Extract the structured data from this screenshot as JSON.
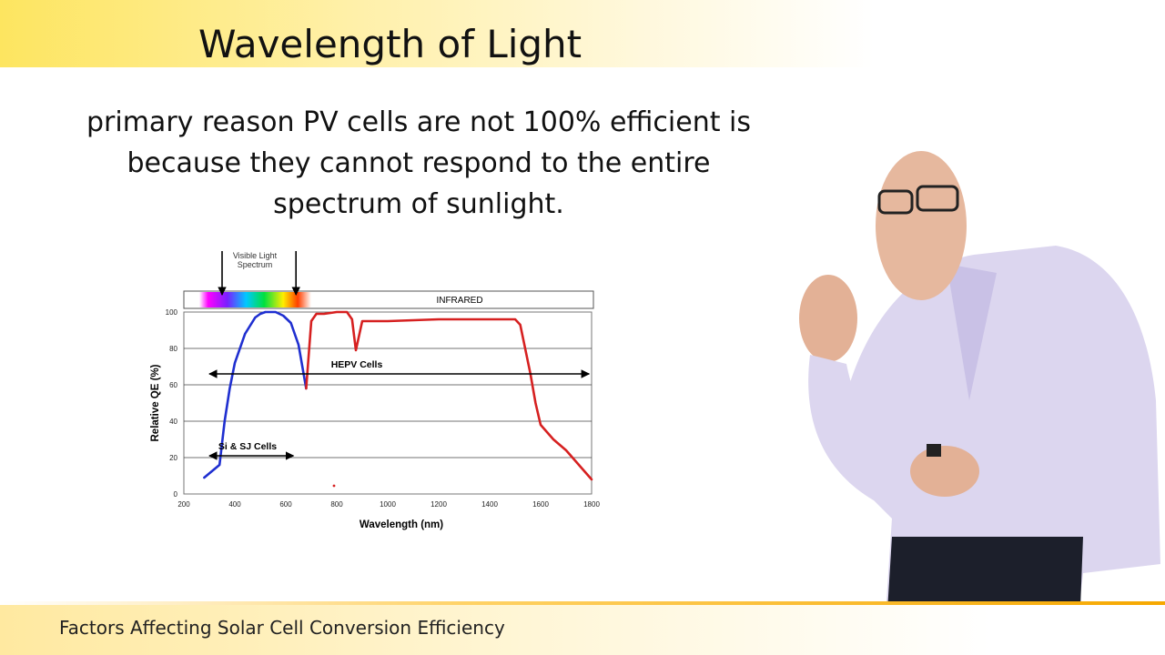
{
  "slide": {
    "title": "Wavelength of Light",
    "body_lines": [
      "primary reason PV cells are not 100% efficient is",
      "because they cannot respond to the entire",
      "spectrum of sunlight."
    ],
    "footer": "Factors Affecting Solar Cell Conversion Efficiency"
  },
  "colors": {
    "accent_yellow": "#fde560",
    "footer_orange": "#f6a800",
    "hepv_curve": "#d62020",
    "si_curve": "#1f2fd0"
  },
  "chart_data": {
    "type": "line",
    "xlabel": "Wavelength (nm)",
    "ylabel": "Relative QE (%)",
    "xlim": [
      200,
      1800
    ],
    "ylim": [
      0,
      100
    ],
    "x_ticks": [
      200,
      400,
      600,
      800,
      1000,
      1200,
      1400,
      1600,
      1800
    ],
    "y_ticks": [
      0,
      20,
      40,
      60,
      80,
      100
    ],
    "grid": true,
    "spectrum_band": {
      "label": "INFRARED",
      "visible_range": [
        260,
        700
      ]
    },
    "visible_label": "Visible Light Spectrum",
    "visible_markers": [
      350,
      640
    ],
    "series": [
      {
        "color": "#1f2fd0",
        "x": [
          280,
          340,
          360,
          380,
          400,
          440,
          480,
          500,
          520,
          560,
          590,
          620,
          650,
          680
        ],
        "y": [
          9,
          16,
          40,
          58,
          72,
          88,
          97,
          99,
          100,
          100,
          98,
          94,
          82,
          58
        ]
      },
      {
        "color": "#d62020",
        "x": [
          680,
          700,
          720,
          750,
          800,
          840,
          860,
          875,
          900,
          1000,
          1200,
          1400,
          1500,
          1520,
          1560,
          1580,
          1600,
          1650,
          1700,
          1800
        ],
        "y": [
          58,
          95,
          99,
          99,
          100,
          100,
          96,
          79,
          95,
          95,
          96,
          96,
          96,
          93,
          66,
          50,
          38,
          30,
          24,
          8
        ]
      }
    ],
    "annotations": [
      {
        "text": "HEPV Cells",
        "x_range": [
          300,
          1790
        ],
        "y": 66
      },
      {
        "text": "Si & SJ Cells",
        "x_range": [
          300,
          630
        ],
        "y": 21
      }
    ]
  }
}
